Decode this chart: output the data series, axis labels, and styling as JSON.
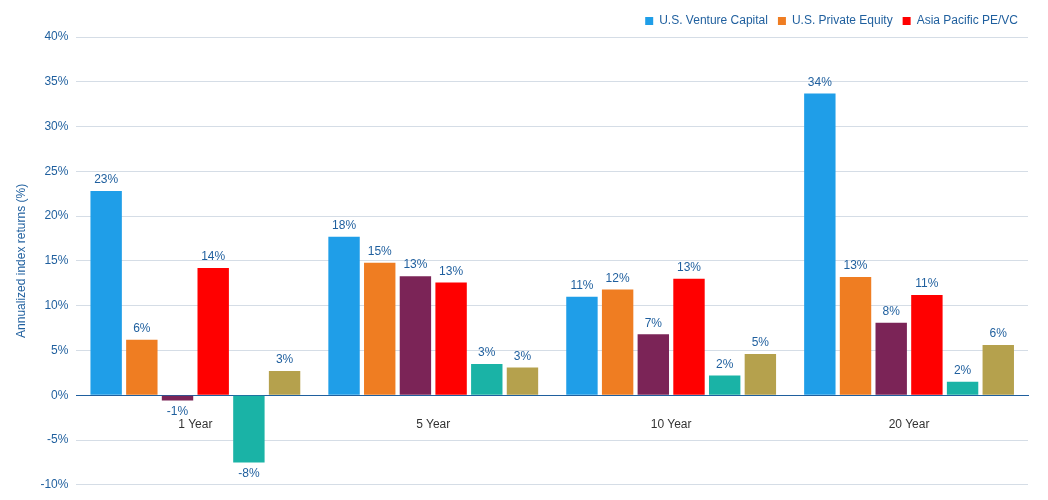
{
  "chart_data": {
    "type": "bar",
    "ylabel": "Annualized index returns (%)",
    "categories": [
      "1 Year",
      "5 Year",
      "10 Year",
      "20 Year"
    ],
    "series": [
      {
        "name": "U.S. Venture Capital",
        "color": "#1f9ee8",
        "values": [
          22.8,
          17.7,
          11.0,
          33.7
        ],
        "value_labels": [
          "23%",
          "18%",
          "11%",
          "34%"
        ]
      },
      {
        "name": "U.S. Private Equity",
        "color": "#ef7d22",
        "values": [
          6.2,
          14.8,
          11.8,
          13.2
        ],
        "value_labels": [
          "6%",
          "15%",
          "12%",
          "13%"
        ]
      },
      {
        "color": "#7b2457",
        "values": [
          -0.6,
          13.3,
          6.8,
          8.1
        ],
        "value_labels": [
          "-1%",
          "13%",
          "7%",
          "8%"
        ]
      },
      {
        "name": "Asia Pacific PE/VC",
        "color": "#ff0000",
        "values": [
          14.2,
          12.6,
          13.0,
          11.2
        ],
        "value_labels": [
          "14%",
          "13%",
          "13%",
          "11%"
        ]
      },
      {
        "color": "#1ab3a6",
        "values": [
          -7.5,
          3.5,
          2.2,
          1.5
        ],
        "value_labels": [
          "-8%",
          "3%",
          "2%",
          "2%"
        ]
      },
      {
        "color": "#b5a14d",
        "values": [
          2.7,
          3.1,
          4.6,
          5.6
        ],
        "value_labels": [
          "3%",
          "3%",
          "5%",
          "6%"
        ]
      }
    ],
    "ylim": [
      -10,
      40
    ],
    "yticks": [
      {
        "value": -10,
        "label": "-10%"
      },
      {
        "value": -5,
        "label": "-5%"
      },
      {
        "value": 0,
        "label": "0%"
      },
      {
        "value": 5,
        "label": "5%"
      },
      {
        "value": 10,
        "label": "10%"
      },
      {
        "value": 15,
        "label": "15%"
      },
      {
        "value": 20,
        "label": "20%"
      },
      {
        "value": 25,
        "label": "25%"
      },
      {
        "value": 30,
        "label": "30%"
      },
      {
        "value": 35,
        "label": "35%"
      },
      {
        "value": 40,
        "label": "40%"
      }
    ],
    "grid": "y",
    "legend": "top right"
  }
}
